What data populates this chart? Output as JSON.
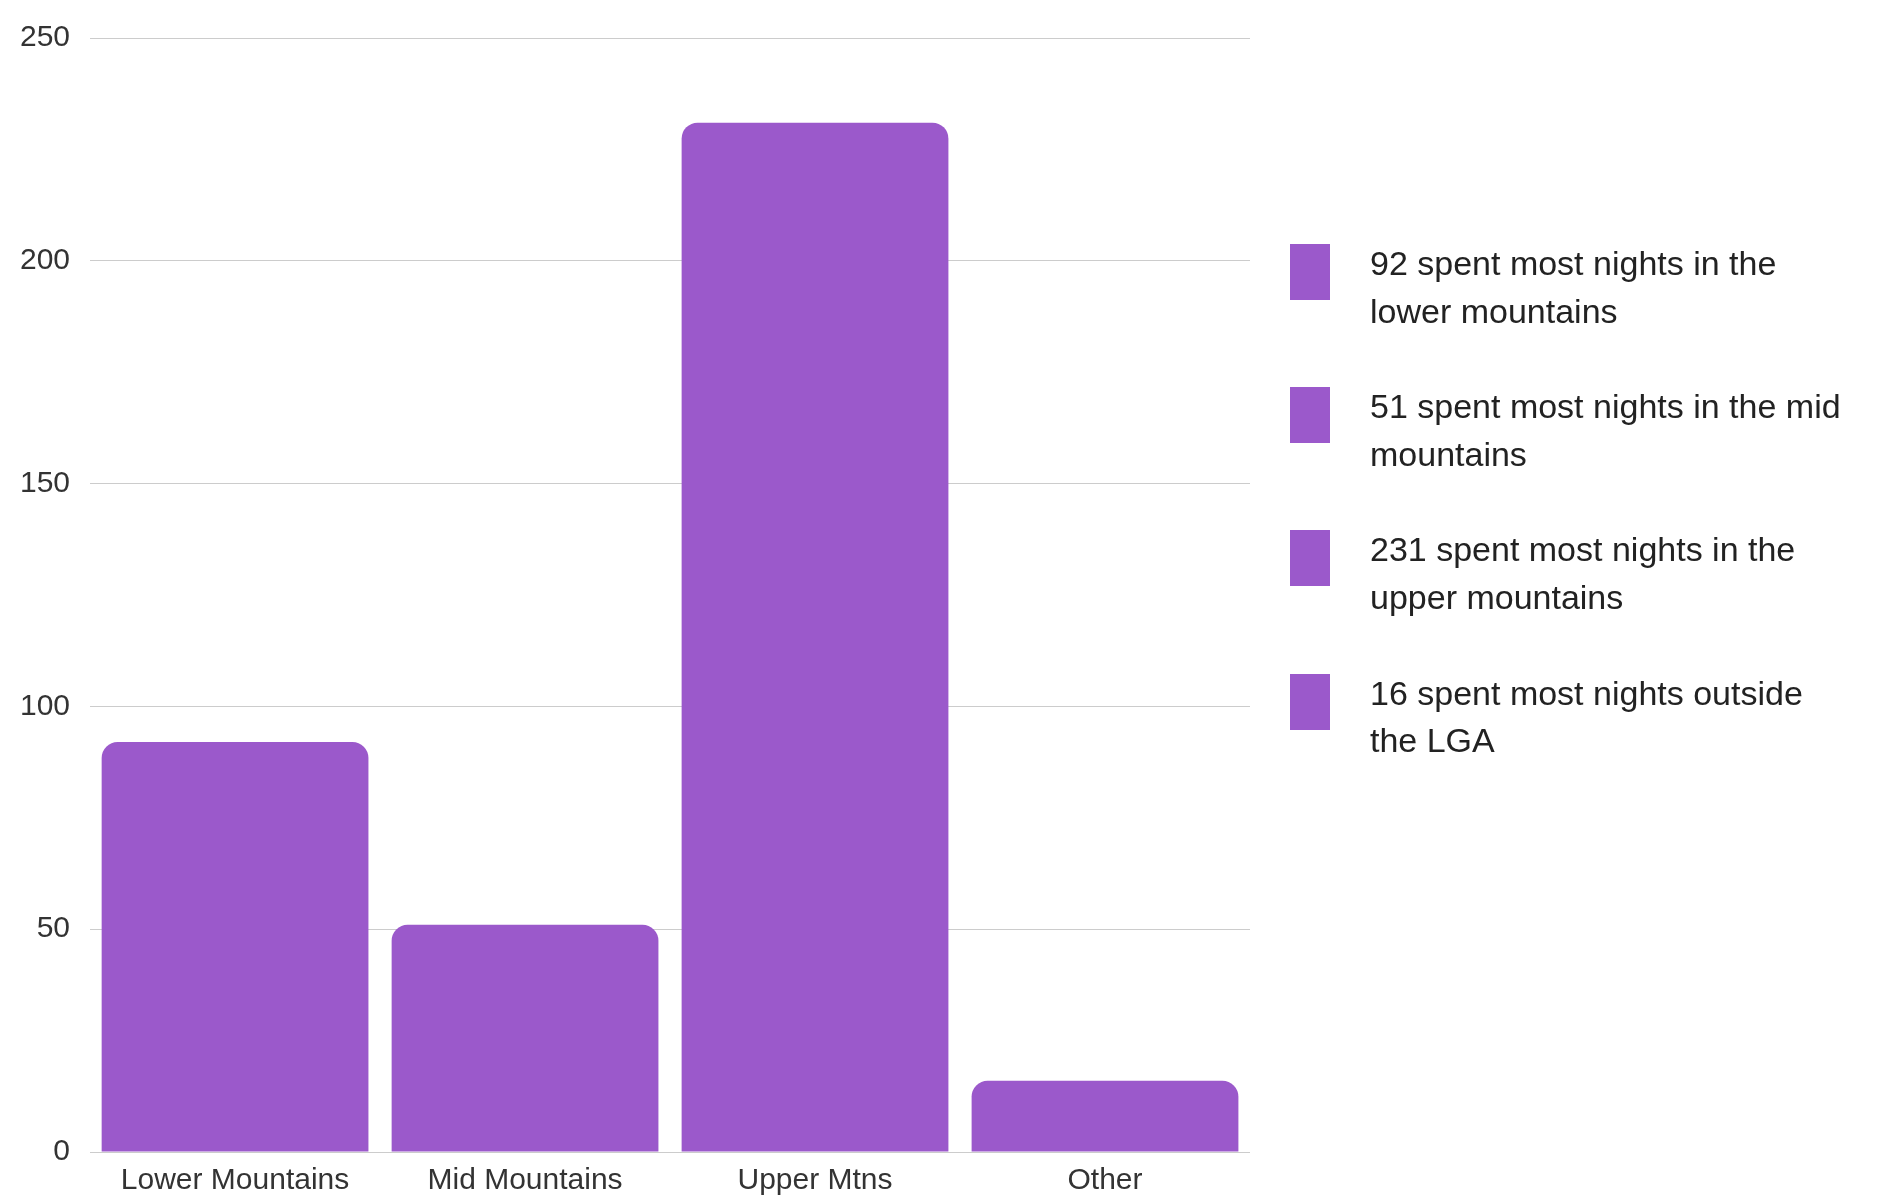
{
  "chart_data": {
    "type": "bar",
    "categories": [
      "Lower Mountains",
      "Mid Mountains",
      "Upper Mtns",
      "Other"
    ],
    "series": [
      {
        "name": "92 spent most nights in the lower mountains",
        "color": "#9b59cb",
        "values": [
          92,
          null,
          null,
          null
        ]
      },
      {
        "name": "51 spent most nights in the mid mountains",
        "color": "#9b59cb",
        "values": [
          null,
          51,
          null,
          null
        ]
      },
      {
        "name": "231 spent most nights in the upper mountains",
        "color": "#9b59cb",
        "values": [
          null,
          null,
          231,
          null
        ]
      },
      {
        "name": "16 spent most nights outside the LGA",
        "color": "#9b59cb",
        "values": [
          null,
          null,
          null,
          16
        ]
      }
    ],
    "stacked": true,
    "ylim": [
      0,
      250
    ],
    "yticks": [
      0,
      50,
      100,
      150,
      200,
      250
    ],
    "grid": "y",
    "legend": "right"
  }
}
